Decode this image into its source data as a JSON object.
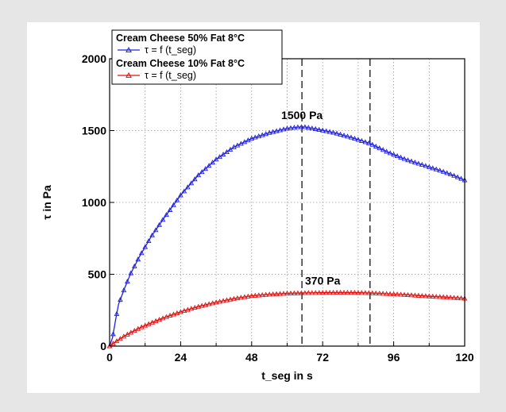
{
  "chart_data": {
    "type": "line",
    "xlabel": "t_seg in s",
    "ylabel": "τ in Pa",
    "xlim": [
      0,
      120
    ],
    "ylim": [
      0,
      2000
    ],
    "xticks": [
      0,
      24,
      48,
      72,
      96,
      120
    ],
    "yticks": [
      0,
      500,
      1000,
      1500,
      2000
    ],
    "x_minor_ticks": [
      12,
      36,
      60,
      84,
      108
    ],
    "grid": true,
    "legend_position": "top-left",
    "series": [
      {
        "name": "Cream Cheese 50% Fat 8°C",
        "sub_label": "τ = f (t_seg)",
        "color": "#2020e0",
        "x": [
          0,
          1,
          2,
          3,
          5,
          7,
          10,
          14,
          18,
          24,
          30,
          36,
          42,
          48,
          54,
          60,
          64,
          66,
          70,
          76,
          82,
          88,
          94,
          100,
          106,
          112,
          116,
          120
        ],
        "y": [
          0,
          60,
          180,
          290,
          400,
          500,
          620,
          760,
          880,
          1050,
          1190,
          1300,
          1385,
          1445,
          1485,
          1515,
          1525,
          1525,
          1510,
          1485,
          1450,
          1410,
          1350,
          1300,
          1260,
          1220,
          1190,
          1155
        ]
      },
      {
        "name": "Cream Cheese 10% Fat 8°C",
        "sub_label": "τ = f (t_seg)",
        "color": "#e01010",
        "x": [
          0,
          2,
          5,
          10,
          15,
          20,
          25,
          30,
          36,
          42,
          48,
          54,
          60,
          66,
          72,
          78,
          84,
          90,
          96,
          102,
          108,
          114,
          120
        ],
        "y": [
          0,
          30,
          70,
          125,
          170,
          210,
          245,
          275,
          305,
          330,
          350,
          360,
          367,
          370,
          372,
          373,
          372,
          368,
          362,
          355,
          347,
          340,
          332
        ]
      }
    ],
    "vlines": [
      65,
      88
    ],
    "annotations": [
      {
        "text": "1500 Pa",
        "x": 65,
        "y": 1525
      },
      {
        "text": "370 Pa",
        "x": 72,
        "y": 373
      }
    ]
  }
}
